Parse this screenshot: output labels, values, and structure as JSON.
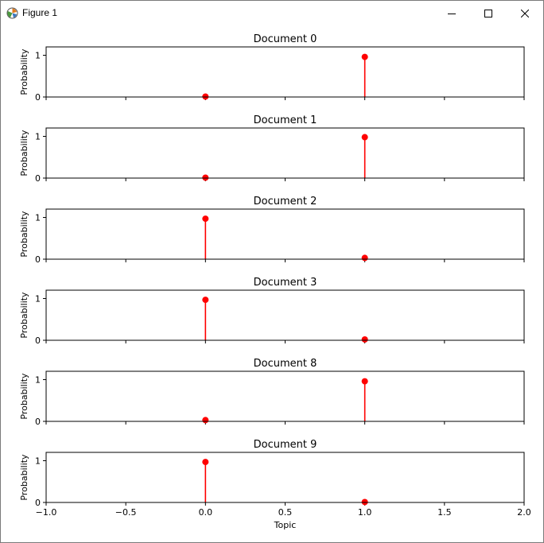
{
  "window": {
    "title": "Figure 1",
    "icons": {
      "app": "figure-app-icon",
      "minimize": "minimize-icon",
      "maximize": "maximize-icon",
      "close": "close-icon"
    }
  },
  "colors": {
    "stem": "#ff0000",
    "marker": "#ff0000",
    "axes": "#000000",
    "background": "#ffffff"
  },
  "chart_data": [
    {
      "type": "stem",
      "title": "Document 0",
      "ylabel": "Probability",
      "x": [
        0,
        1
      ],
      "values": [
        0.01,
        0.96
      ],
      "xlim": [
        -1.0,
        2.0
      ],
      "ylim": [
        0,
        1.2
      ],
      "yticks": [
        "0",
        "1"
      ]
    },
    {
      "type": "stem",
      "title": "Document 1",
      "ylabel": "Probability",
      "x": [
        0,
        1
      ],
      "values": [
        0.01,
        0.98
      ],
      "xlim": [
        -1.0,
        2.0
      ],
      "ylim": [
        0,
        1.2
      ],
      "yticks": [
        "0",
        "1"
      ]
    },
    {
      "type": "stem",
      "title": "Document 2",
      "ylabel": "Probability",
      "x": [
        0,
        1
      ],
      "values": [
        0.97,
        0.03
      ],
      "xlim": [
        -1.0,
        2.0
      ],
      "ylim": [
        0,
        1.2
      ],
      "yticks": [
        "0",
        "1"
      ]
    },
    {
      "type": "stem",
      "title": "Document 3",
      "ylabel": "Probability",
      "x": [
        0,
        1
      ],
      "values": [
        0.97,
        0.02
      ],
      "xlim": [
        -1.0,
        2.0
      ],
      "ylim": [
        0,
        1.2
      ],
      "yticks": [
        "0",
        "1"
      ]
    },
    {
      "type": "stem",
      "title": "Document 8",
      "ylabel": "Probability",
      "x": [
        0,
        1
      ],
      "values": [
        0.03,
        0.96
      ],
      "xlim": [
        -1.0,
        2.0
      ],
      "ylim": [
        0,
        1.2
      ],
      "yticks": [
        "0",
        "1"
      ]
    },
    {
      "type": "stem",
      "title": "Document 9",
      "ylabel": "Probability",
      "x": [
        0,
        1
      ],
      "values": [
        0.97,
        0.01
      ],
      "xlim": [
        -1.0,
        2.0
      ],
      "ylim": [
        0,
        1.2
      ],
      "yticks": [
        "0",
        "1"
      ],
      "xticks": [
        "−1.0",
        "−0.5",
        "0.0",
        "0.5",
        "1.0",
        "1.5",
        "2.0"
      ],
      "xlabel": "Topic"
    }
  ]
}
